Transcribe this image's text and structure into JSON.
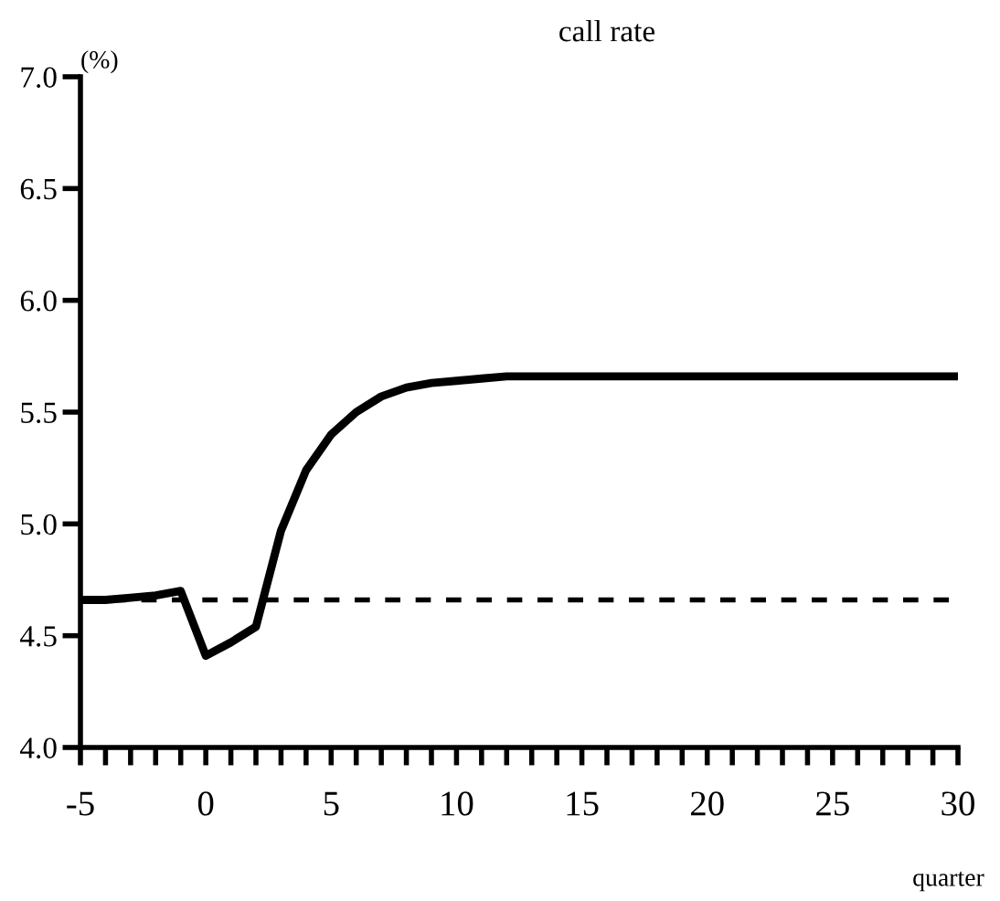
{
  "chart_data": {
    "type": "line",
    "title": "call rate",
    "ylabel": "(%)",
    "xlabel": "quarter",
    "x": [
      -5,
      -4,
      -3,
      -2,
      -1,
      0,
      1,
      2,
      3,
      4,
      5,
      6,
      7,
      8,
      9,
      10,
      11,
      12,
      13,
      14,
      15,
      16,
      17,
      18,
      19,
      20,
      21,
      22,
      23,
      24,
      25,
      26,
      27,
      28,
      29,
      30
    ],
    "series": [
      {
        "color": "#000000",
        "values": [
          4.66,
          4.66,
          4.67,
          4.68,
          4.7,
          4.41,
          4.47,
          4.54,
          4.97,
          5.24,
          5.4,
          5.5,
          5.57,
          5.61,
          5.63,
          5.64,
          5.65,
          5.66,
          5.66,
          5.66,
          5.66,
          5.66,
          5.66,
          5.66,
          5.66,
          5.66,
          5.66,
          5.66,
          5.66,
          5.66,
          5.66,
          5.66,
          5.66,
          5.66,
          5.66,
          5.66
        ]
      }
    ],
    "ref_lines": [
      {
        "axis": "y",
        "value": 4.66,
        "color": "#000000",
        "line_style": "dashed"
      }
    ],
    "xlim": [
      -5,
      30
    ],
    "ylim": [
      4.0,
      7.0
    ],
    "xticks": [
      -5,
      {
        "value": -4,
        "label": null
      },
      {
        "value": -3,
        "label": null
      },
      {
        "value": -2,
        "label": null
      },
      {
        "value": -1,
        "label": null
      },
      0,
      {
        "value": 1,
        "label": null
      },
      {
        "value": 2,
        "label": null
      },
      {
        "value": 3,
        "label": null
      },
      {
        "value": 4,
        "label": null
      },
      5,
      {
        "value": 6,
        "label": null
      },
      {
        "value": 7,
        "label": null
      },
      {
        "value": 8,
        "label": null
      },
      {
        "value": 9,
        "label": null
      },
      10,
      {
        "value": 11,
        "label": null
      },
      {
        "value": 12,
        "label": null
      },
      {
        "value": 13,
        "label": null
      },
      {
        "value": 14,
        "label": null
      },
      15,
      {
        "value": 16,
        "label": null
      },
      {
        "value": 17,
        "label": null
      },
      {
        "value": 18,
        "label": null
      },
      {
        "value": 19,
        "label": null
      },
      20,
      {
        "value": 21,
        "label": null
      },
      {
        "value": 22,
        "label": null
      },
      {
        "value": 23,
        "label": null
      },
      {
        "value": 24,
        "label": null
      },
      25,
      {
        "value": 26,
        "label": null
      },
      {
        "value": 27,
        "label": null
      },
      {
        "value": 28,
        "label": null
      },
      {
        "value": 29,
        "label": null
      },
      30
    ],
    "yticks": [
      {
        "value": 4.0,
        "label": "4.0"
      },
      {
        "value": 4.5,
        "label": "4.5"
      },
      {
        "value": 5.0,
        "label": "5.0"
      },
      {
        "value": 5.5,
        "label": "5.5"
      },
      {
        "value": 6.0,
        "label": "6.0"
      },
      {
        "value": 6.5,
        "label": "6.5"
      },
      {
        "value": 7.0,
        "label": "7.0"
      }
    ],
    "grid": false,
    "legend": false,
    "marker": "none",
    "line_style": "solid"
  }
}
